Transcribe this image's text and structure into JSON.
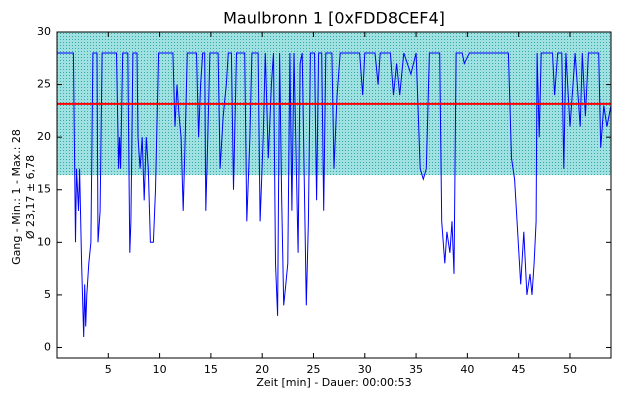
{
  "chart_data": {
    "type": "line",
    "title": "Maulbronn 1 [0xFDD8CEF4]",
    "x_label": "Zeit [min] - Dauer: 00:00:53",
    "y_label": [
      "Gang - Min.: 1 - Max.: 28",
      "Ø 23,17 ± 6,78"
    ],
    "xlim": [
      0,
      54
    ],
    "ylim": [
      -1,
      30
    ],
    "xticks": [
      5,
      10,
      15,
      20,
      25,
      30,
      35,
      40,
      45,
      50
    ],
    "yticks": [
      0,
      5,
      10,
      15,
      20,
      25,
      30
    ],
    "mean_line": {
      "value": 23.17,
      "color": "#ff0000"
    },
    "band": {
      "low": 16.39,
      "high": 29.95,
      "color": "#6fcfcf"
    },
    "x": [
      0,
      1.6,
      1.8,
      1.9,
      2.1,
      2.2,
      2.4,
      2.6,
      2.7,
      2.8,
      2.9,
      3.1,
      3.3,
      3.5,
      3.9,
      4.0,
      4.2,
      4.4,
      5.8,
      6.0,
      6.1,
      6.2,
      6.4,
      6.9,
      7.1,
      7.2,
      7.4,
      7.8,
      7.9,
      8.1,
      8.3,
      8.5,
      8.7,
      8.9,
      9.1,
      9.4,
      9.6,
      9.9,
      11.3,
      11.5,
      11.7,
      11.9,
      12.1,
      12.3,
      12.5,
      12.7,
      13.6,
      13.8,
      14.0,
      14.2,
      14.4,
      14.5,
      14.7,
      14.9,
      15.7,
      15.9,
      16.2,
      16.5,
      16.7,
      17.0,
      17.2,
      17.5,
      18.3,
      18.5,
      18.8,
      19.0,
      19.6,
      19.8,
      20.1,
      20.3,
      20.6,
      20.9,
      21.1,
      21.3,
      21.5,
      21.7,
      21.9,
      22.1,
      22.3,
      22.5,
      22.7,
      22.9,
      23.1,
      23.5,
      23.7,
      23.9,
      24.3,
      24.5,
      24.7,
      25.1,
      25.3,
      25.5,
      25.8,
      26.0,
      26.2,
      26.8,
      27.0,
      27.3,
      27.6,
      29.5,
      29.8,
      30.0,
      31.0,
      31.3,
      31.5,
      32.5,
      32.8,
      33.1,
      33.4,
      33.8,
      34.5,
      35.0,
      35.4,
      35.7,
      36.0,
      36.3,
      37.3,
      37.5,
      37.8,
      38.0,
      38.3,
      38.5,
      38.7,
      38.9,
      39.5,
      39.7,
      40.2,
      44.0,
      44.3,
      44.6,
      45.2,
      45.5,
      45.8,
      46.1,
      46.3,
      46.5,
      46.7,
      46.8,
      47.0,
      47.2,
      48.3,
      48.5,
      48.8,
      49.2,
      49.4,
      49.6,
      50.0,
      50.3,
      50.5,
      51.0,
      51.2,
      51.5,
      51.8,
      52.8,
      53.0,
      53.3,
      53.6,
      54.0
    ],
    "series": [
      {
        "color": "#0000ff",
        "values": [
          28,
          28,
          10,
          17,
          13,
          17,
          8,
          1,
          6,
          2,
          5,
          8,
          10,
          28,
          28,
          10,
          13,
          28,
          28,
          17,
          20,
          17,
          28,
          28,
          9,
          12,
          28,
          28,
          20,
          17,
          20,
          14,
          20,
          17,
          10,
          10,
          15,
          28,
          28,
          21,
          25,
          22,
          20,
          13,
          20,
          28,
          28,
          20,
          25,
          28,
          28,
          13,
          20,
          28,
          28,
          17,
          22,
          25,
          28,
          28,
          15,
          28,
          28,
          12,
          20,
          28,
          28,
          12,
          20,
          28,
          18,
          25,
          28,
          8,
          3,
          28,
          14,
          4,
          6,
          8,
          28,
          13,
          28,
          9,
          27,
          28,
          4,
          12,
          28,
          28,
          14,
          28,
          28,
          13,
          28,
          28,
          17,
          24,
          28,
          28,
          24,
          28,
          28,
          25,
          28,
          28,
          24,
          27,
          24,
          28,
          26,
          28,
          17,
          16,
          17,
          28,
          28,
          12,
          8,
          11,
          9,
          12,
          7,
          28,
          28,
          27,
          28,
          28,
          18,
          16,
          6,
          11,
          5,
          7,
          5,
          8,
          12,
          28,
          20,
          28,
          28,
          24,
          28,
          28,
          17,
          28,
          21,
          25,
          28,
          21,
          28,
          22,
          28,
          28,
          19,
          23,
          21,
          23
        ]
      }
    ]
  }
}
